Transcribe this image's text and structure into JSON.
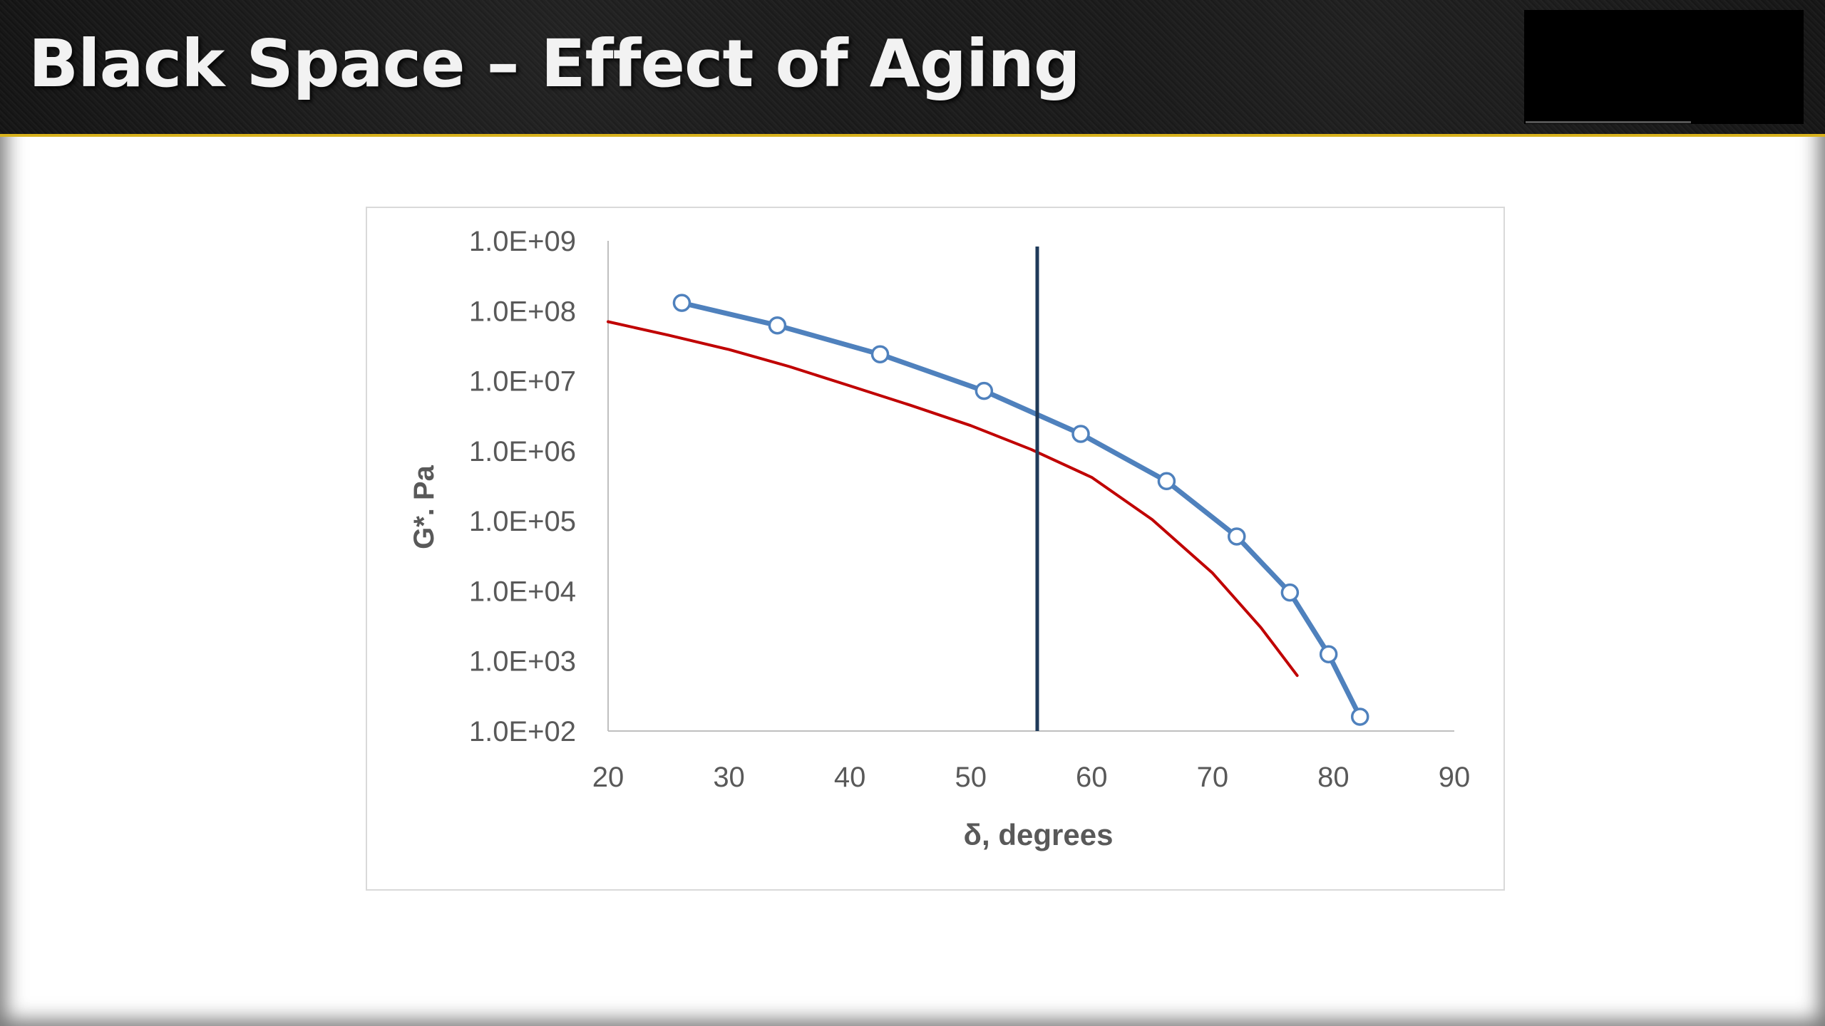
{
  "slide": {
    "title": "Black Space – Effect of Aging"
  },
  "chart_data": {
    "type": "line",
    "title": "",
    "xlabel": "δ, degrees",
    "ylabel": "G*. Pa",
    "x_ticks": [
      20,
      30,
      40,
      50,
      60,
      70,
      80,
      90
    ],
    "xlim": [
      20,
      90
    ],
    "y_scale": "log",
    "ylim": [
      100,
      1000000000
    ],
    "y_ticks": [
      {
        "value": 100,
        "label": "1.0E+02"
      },
      {
        "value": 1000,
        "label": "1.0E+03"
      },
      {
        "value": 10000,
        "label": "1.0E+04"
      },
      {
        "value": 100000,
        "label": "1.0E+05"
      },
      {
        "value": 1000000,
        "label": "1.0E+06"
      },
      {
        "value": 10000000,
        "label": "1.0E+07"
      },
      {
        "value": 100000000,
        "label": "1.0E+08"
      },
      {
        "value": 1000000000,
        "label": "1.0E+09"
      }
    ],
    "grid": false,
    "legend": "none",
    "series": [
      {
        "color": "#4f81bd",
        "markers": true,
        "points": [
          {
            "x": 26.1,
            "y": 130000000
          },
          {
            "x": 34.0,
            "y": 62000000
          },
          {
            "x": 42.5,
            "y": 24000000
          },
          {
            "x": 51.1,
            "y": 7200000
          },
          {
            "x": 59.1,
            "y": 1750000
          },
          {
            "x": 66.2,
            "y": 370000
          },
          {
            "x": 72.0,
            "y": 60000
          },
          {
            "x": 76.4,
            "y": 9500
          },
          {
            "x": 79.6,
            "y": 1250
          },
          {
            "x": 82.2,
            "y": 160
          }
        ]
      },
      {
        "color": "#c00000",
        "markers": false,
        "points": [
          {
            "x": 20.0,
            "y": 70000000
          },
          {
            "x": 25.0,
            "y": 45000000
          },
          {
            "x": 30.0,
            "y": 28000000
          },
          {
            "x": 35.0,
            "y": 16000000
          },
          {
            "x": 40.0,
            "y": 8500000
          },
          {
            "x": 45.0,
            "y": 4500000
          },
          {
            "x": 50.0,
            "y": 2300000
          },
          {
            "x": 55.0,
            "y": 1050000
          },
          {
            "x": 60.0,
            "y": 420000
          },
          {
            "x": 65.0,
            "y": 105000
          },
          {
            "x": 70.0,
            "y": 18000
          },
          {
            "x": 74.0,
            "y": 3000
          },
          {
            "x": 77.0,
            "y": 620
          }
        ]
      }
    ],
    "vertical_line": {
      "x": 55.5,
      "color": "#1f3a5a"
    }
  }
}
